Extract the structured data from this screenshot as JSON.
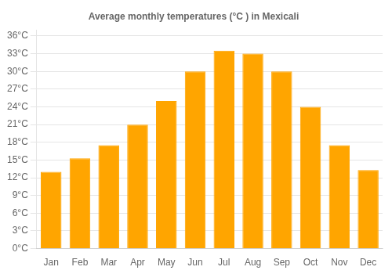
{
  "chart_data": {
    "type": "bar",
    "title": "Average monthly temperatures (°C ) in Mexicali",
    "categories": [
      "Jan",
      "Feb",
      "Mar",
      "Apr",
      "May",
      "Jun",
      "Jul",
      "Aug",
      "Sep",
      "Oct",
      "Nov",
      "Dec"
    ],
    "values": [
      13,
      15.3,
      17.5,
      21,
      25,
      30,
      33.5,
      33,
      30,
      24,
      17.5,
      13.3
    ],
    "color": "#FFA500",
    "ylim": [
      0,
      37
    ],
    "yticks": [
      {
        "value": 0,
        "label": "0°C"
      },
      {
        "value": 3,
        "label": "3°C"
      },
      {
        "value": 6,
        "label": "6°C"
      },
      {
        "value": 9,
        "label": "9°C"
      },
      {
        "value": 12,
        "label": "12°C"
      },
      {
        "value": 15,
        "label": "15°C"
      },
      {
        "value": 18,
        "label": "18°C"
      },
      {
        "value": 21,
        "label": "21°C"
      },
      {
        "value": 24,
        "label": "24°C"
      },
      {
        "value": 27,
        "label": "27°C"
      },
      {
        "value": 30,
        "label": "30°C"
      },
      {
        "value": 33,
        "label": "33°C"
      },
      {
        "value": 36,
        "label": "36°C"
      }
    ],
    "grid": true
  }
}
